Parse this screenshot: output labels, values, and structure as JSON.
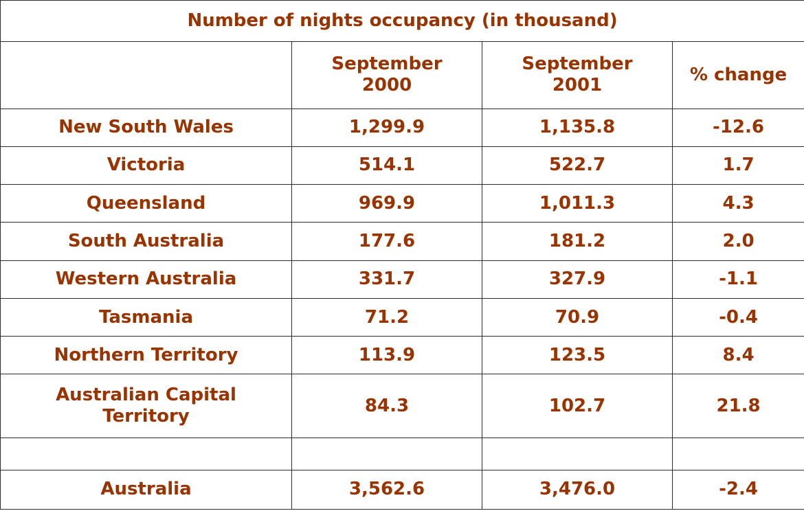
{
  "chart_data": {
    "type": "table",
    "title": "Number of nights occupancy (in thousand)",
    "columns": [
      "",
      "September 2000",
      "September 2001",
      "% change"
    ],
    "column_lines": [
      [],
      [
        "September",
        "2000"
      ],
      [
        "September",
        "2001"
      ],
      [
        "% change"
      ]
    ],
    "rows": [
      {
        "lines": [
          "New South Wales"
        ],
        "region": "New South Wales",
        "sep_2000": "1,299.9",
        "sep_2001": "1,135.8",
        "pct_change": "-12.6"
      },
      {
        "lines": [
          "Victoria"
        ],
        "region": "Victoria",
        "sep_2000": "514.1",
        "sep_2001": "522.7",
        "pct_change": "1.7"
      },
      {
        "lines": [
          "Queensland"
        ],
        "region": "Queensland",
        "sep_2000": "969.9",
        "sep_2001": "1,011.3",
        "pct_change": "4.3"
      },
      {
        "lines": [
          "South Australia"
        ],
        "region": "South Australia",
        "sep_2000": "177.6",
        "sep_2001": "181.2",
        "pct_change": "2.0"
      },
      {
        "lines": [
          "Western Australia"
        ],
        "region": "Western Australia",
        "sep_2000": "331.7",
        "sep_2001": "327.9",
        "pct_change": "-1.1"
      },
      {
        "lines": [
          "Tasmania"
        ],
        "region": "Tasmania",
        "sep_2000": "71.2",
        "sep_2001": "70.9",
        "pct_change": "-0.4"
      },
      {
        "lines": [
          "Northern Territory"
        ],
        "region": "Northern Territory",
        "sep_2000": "113.9",
        "sep_2001": "123.5",
        "pct_change": "8.4"
      },
      {
        "lines": [
          "Australian Capital",
          "Territory"
        ],
        "region": "Australian Capital Territory",
        "sep_2000": "84.3",
        "sep_2001": "102.7",
        "pct_change": "21.8"
      }
    ],
    "total": {
      "region": "Australia",
      "sep_2000": "3,562.6",
      "sep_2001": "3,476.0",
      "pct_change": "-2.4"
    },
    "text_color": "#993300",
    "border_color": "#2b2b2b"
  }
}
